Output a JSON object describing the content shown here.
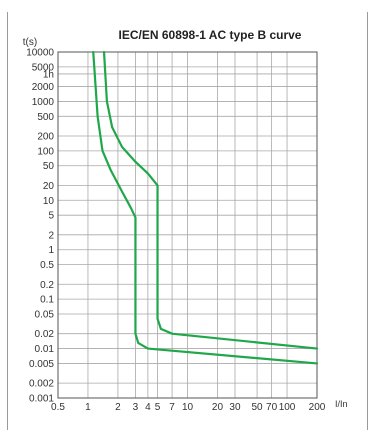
{
  "chart_data": {
    "type": "line",
    "title": "IEC/EN 60898-1 AC type B curve",
    "ylabel": "t(s)",
    "xlabel": "I/In",
    "x_scale": "log",
    "y_scale": "log",
    "xlim": [
      0.5,
      200
    ],
    "ylim": [
      0.001,
      10000
    ],
    "grid": true,
    "x_ticks": [
      {
        "value": 0.5,
        "label": "0.5"
      },
      {
        "value": 1,
        "label": "1"
      },
      {
        "value": 2,
        "label": "2"
      },
      {
        "value": 3,
        "label": "3"
      },
      {
        "value": 4,
        "label": "4"
      },
      {
        "value": 5,
        "label": "5"
      },
      {
        "value": 7,
        "label": "7"
      },
      {
        "value": 10,
        "label": "10"
      },
      {
        "value": 20,
        "label": "20"
      },
      {
        "value": 30,
        "label": "30"
      },
      {
        "value": 50,
        "label": "50"
      },
      {
        "value": 70,
        "label": "70"
      },
      {
        "value": 100,
        "label": "100"
      },
      {
        "value": 200,
        "label": "200"
      }
    ],
    "y_ticks": [
      {
        "value": 10000,
        "label": "10000"
      },
      {
        "value": 5000,
        "label": "5000"
      },
      {
        "value": 3600,
        "label": "1h"
      },
      {
        "value": 2000,
        "label": "2000"
      },
      {
        "value": 1000,
        "label": "1000"
      },
      {
        "value": 500,
        "label": "500"
      },
      {
        "value": 200,
        "label": "200"
      },
      {
        "value": 100,
        "label": "100"
      },
      {
        "value": 50,
        "label": "50"
      },
      {
        "value": 20,
        "label": "20"
      },
      {
        "value": 10,
        "label": "10"
      },
      {
        "value": 5,
        "label": "5"
      },
      {
        "value": 2,
        "label": "2"
      },
      {
        "value": 1,
        "label": "1"
      },
      {
        "value": 0.5,
        "label": "0.5"
      },
      {
        "value": 0.2,
        "label": "0.2"
      },
      {
        "value": 0.1,
        "label": "0.1"
      },
      {
        "value": 0.05,
        "label": "0.05"
      },
      {
        "value": 0.02,
        "label": "0.02"
      },
      {
        "value": 0.01,
        "label": "0.01"
      },
      {
        "value": 0.005,
        "label": "0.005"
      },
      {
        "value": 0.002,
        "label": "0.002"
      },
      {
        "value": 0.001,
        "label": "0.001"
      }
    ],
    "series": [
      {
        "color": "#1fa74a",
        "points": [
          [
            1.13,
            10000
          ],
          [
            1.25,
            500
          ],
          [
            1.4,
            100
          ],
          [
            1.7,
            40
          ],
          [
            2.2,
            15
          ],
          [
            2.7,
            7
          ],
          [
            3.0,
            4.5
          ],
          [
            3.0,
            0.02
          ],
          [
            3.2,
            0.013
          ],
          [
            4.0,
            0.01
          ],
          [
            200,
            0.005
          ]
        ]
      },
      {
        "color": "#1fa74a",
        "points": [
          [
            1.45,
            10000
          ],
          [
            1.55,
            1000
          ],
          [
            1.75,
            300
          ],
          [
            2.2,
            120
          ],
          [
            3.0,
            60
          ],
          [
            4.0,
            35
          ],
          [
            5.0,
            20
          ],
          [
            5.0,
            0.04
          ],
          [
            5.4,
            0.025
          ],
          [
            7.0,
            0.02
          ],
          [
            200,
            0.01
          ]
        ]
      }
    ]
  }
}
